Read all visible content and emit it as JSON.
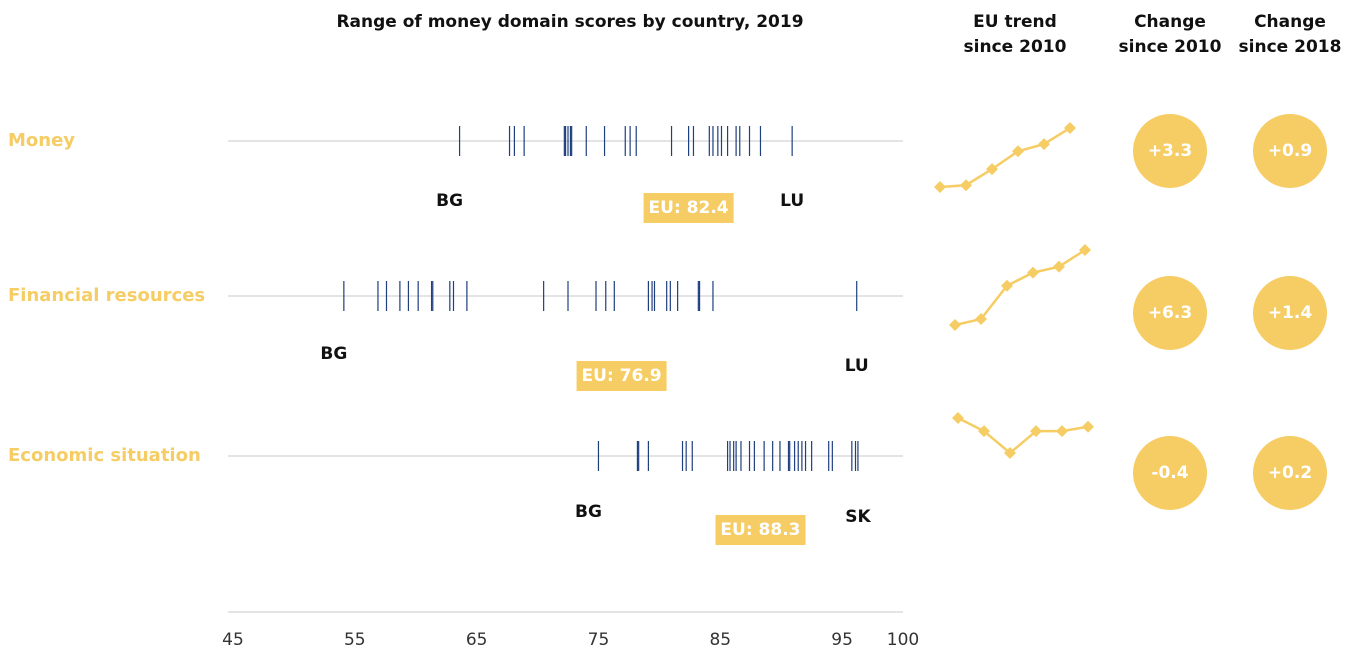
{
  "chart_data": {
    "type": "strip",
    "title": "Range of money domain scores by country, 2019",
    "trend_header": "EU trend since 2010",
    "change_2010_header": "Change since 2010",
    "change_2018_header": "Change since 2018",
    "xlim": [
      45,
      100
    ],
    "xticks": [
      45,
      55,
      65,
      75,
      85,
      95,
      100
    ],
    "label_color": "#f5cd64",
    "mark_color": "#1f3f7f",
    "rows": [
      {
        "name": "Money",
        "scores": [
          63.6,
          67.7,
          68.1,
          68.9,
          72.2,
          72.3,
          72.5,
          72.7,
          72.8,
          74.0,
          75.5,
          77.2,
          77.6,
          78.1,
          81.0,
          82.4,
          82.8,
          84.1,
          84.4,
          84.8,
          85.1,
          85.6,
          86.3,
          86.6,
          87.4,
          88.3,
          90.9
        ],
        "min_label": "BG",
        "max_label": "LU",
        "eu": 82.4,
        "eu_label": "EU: 82.4",
        "trend": [
          79.1,
          79.2,
          80.1,
          81.1,
          81.5,
          82.4
        ],
        "change_2010": 3.3,
        "change_2010_label": "+3.3",
        "change_2018": 0.9,
        "change_2018_label": "+0.9"
      },
      {
        "name": "Financial resources",
        "scores": [
          54.1,
          56.9,
          57.6,
          58.7,
          59.4,
          60.2,
          61.3,
          61.4,
          62.8,
          63.1,
          64.2,
          70.5,
          72.5,
          74.8,
          75.6,
          76.3,
          79.1,
          79.4,
          79.6,
          80.6,
          80.9,
          81.5,
          83.2,
          83.3,
          84.4,
          96.2
        ],
        "min_label": "BG",
        "max_label": "LU",
        "eu": 76.9,
        "eu_label": "EU: 76.9",
        "trend": [
          70.6,
          71.1,
          73.9,
          75.0,
          75.5,
          76.9
        ],
        "change_2010": 6.3,
        "change_2010_label": "+6.3",
        "change_2018": 1.4,
        "change_2018_label": "+1.4"
      },
      {
        "name": "Economic situation",
        "scores": [
          75.0,
          78.2,
          78.3,
          79.1,
          81.9,
          82.2,
          82.7,
          85.6,
          85.8,
          86.1,
          86.3,
          86.7,
          87.4,
          87.8,
          88.6,
          89.3,
          89.9,
          90.6,
          90.7,
          91.1,
          91.4,
          91.7,
          92.0,
          92.5,
          93.9,
          94.2,
          95.8,
          96.1,
          96.3
        ],
        "min_label": "BG",
        "max_label": "SK",
        "eu": 88.3,
        "eu_label": "EU: 88.3",
        "trend": [
          88.7,
          88.1,
          87.1,
          88.1,
          88.1,
          88.3
        ],
        "change_2010": -0.4,
        "change_2010_label": "-0.4",
        "change_2018": 0.2,
        "change_2018_label": "+0.2"
      }
    ]
  }
}
